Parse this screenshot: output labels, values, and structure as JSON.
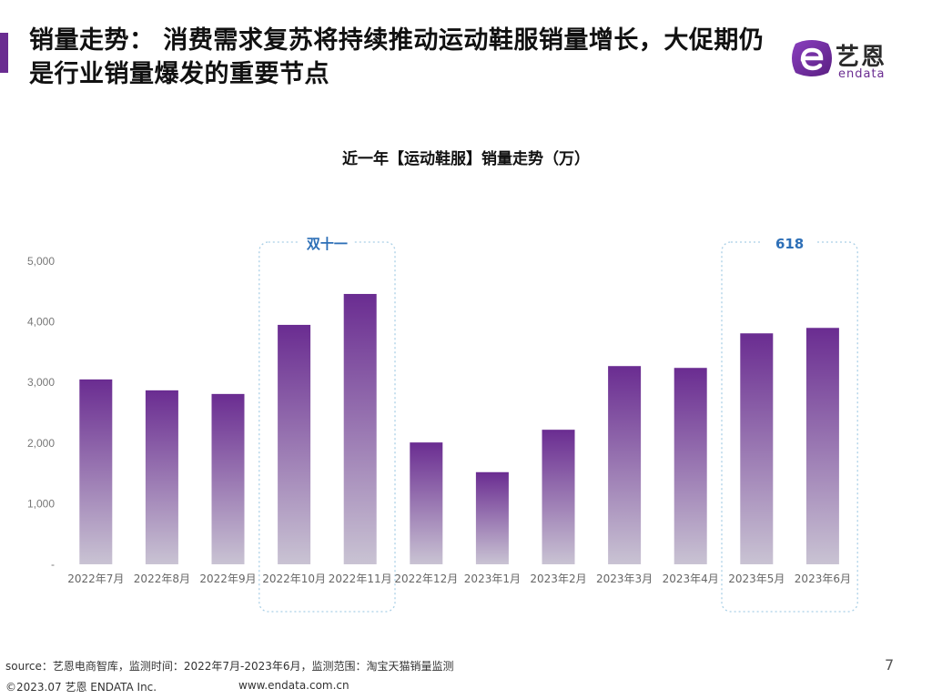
{
  "header": {
    "title": "销量走势： 消费需求复苏将持续推动运动鞋服销量增长，大促期仍是行业销量爆发的重要节点"
  },
  "logo": {
    "cn_text": "艺恩",
    "en_text": "endata",
    "brand_color": "#6a2c91"
  },
  "chart_data": {
    "type": "bar",
    "title": "近一年【运动鞋服】销量走势（万）",
    "categories": [
      "2022年7月",
      "2022年8月",
      "2022年9月",
      "2022年10月",
      "2022年11月",
      "2022年12月",
      "2023年1月",
      "2023年2月",
      "2023年3月",
      "2023年4月",
      "2023年5月",
      "2023年6月"
    ],
    "values": [
      3050,
      2870,
      2810,
      3950,
      4460,
      2010,
      1520,
      2220,
      3270,
      3240,
      3810,
      3900
    ],
    "ylim": [
      0,
      5000
    ],
    "y_ticks": [
      "-",
      "1,000",
      "2,000",
      "3,000",
      "4,000",
      "5,000"
    ],
    "grid": false,
    "legend": "none",
    "bar_color_top": "#6a2c91",
    "bar_color_bottom": "#c9c3d3",
    "annotations": [
      {
        "label": "双十一",
        "from_index": 3,
        "to_index": 4,
        "color": "#2d6fb7"
      },
      {
        "label": "618",
        "from_index": 10,
        "to_index": 11,
        "color": "#2d6fb7"
      }
    ]
  },
  "footer": {
    "source": "source：艺恩电商智库，监测时间：2022年7月-2023年6月，监测范围：淘宝天猫销量监测",
    "page_number": "7",
    "copyright": "©2023.07 艺恩 ENDATA Inc.",
    "url": "www.endata.com.cn"
  }
}
